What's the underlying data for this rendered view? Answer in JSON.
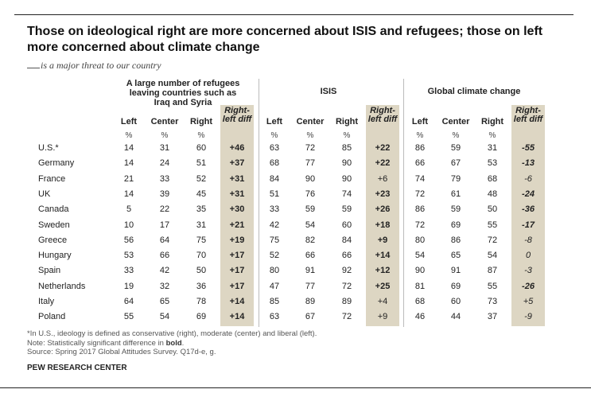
{
  "title": "Those on ideological right are more concerned about ISIS and refugees; those on left more concerned about climate change",
  "subtitle": "is a major threat to our country",
  "chart_data": {
    "type": "table",
    "groups": [
      {
        "name": "A large number of refugees leaving countries such as Iraq and Syria"
      },
      {
        "name": "ISIS"
      },
      {
        "name": "Global climate change"
      }
    ],
    "columns": [
      "Left",
      "Center",
      "Right",
      "Right-left diff"
    ],
    "units": [
      "%",
      "%",
      "%"
    ],
    "rows": [
      {
        "country": "U.S.*",
        "refugees": [
          14,
          31,
          60,
          "+46"
        ],
        "isis": [
          63,
          72,
          85,
          "+22"
        ],
        "climate": [
          86,
          59,
          31,
          "-55"
        ]
      },
      {
        "country": "Germany",
        "refugees": [
          14,
          24,
          51,
          "+37"
        ],
        "isis": [
          68,
          77,
          90,
          "+22"
        ],
        "climate": [
          66,
          67,
          53,
          "-13"
        ]
      },
      {
        "country": "France",
        "refugees": [
          21,
          33,
          52,
          "+31"
        ],
        "isis": [
          84,
          90,
          90,
          "+6"
        ],
        "climate": [
          74,
          79,
          68,
          "-6"
        ]
      },
      {
        "country": "UK",
        "refugees": [
          14,
          39,
          45,
          "+31"
        ],
        "isis": [
          51,
          76,
          74,
          "+23"
        ],
        "climate": [
          72,
          61,
          48,
          "-24"
        ]
      },
      {
        "country": "Canada",
        "refugees": [
          5,
          22,
          35,
          "+30"
        ],
        "isis": [
          33,
          59,
          59,
          "+26"
        ],
        "climate": [
          86,
          59,
          50,
          "-36"
        ]
      },
      {
        "country": "Sweden",
        "refugees": [
          10,
          17,
          31,
          "+21"
        ],
        "isis": [
          42,
          54,
          60,
          "+18"
        ],
        "climate": [
          72,
          69,
          55,
          "-17"
        ]
      },
      {
        "country": "Greece",
        "refugees": [
          56,
          64,
          75,
          "+19"
        ],
        "isis": [
          75,
          82,
          84,
          "+9"
        ],
        "climate": [
          80,
          86,
          72,
          "-8"
        ]
      },
      {
        "country": "Hungary",
        "refugees": [
          53,
          66,
          70,
          "+17"
        ],
        "isis": [
          52,
          66,
          66,
          "+14"
        ],
        "climate": [
          54,
          65,
          54,
          "0"
        ]
      },
      {
        "country": "Spain",
        "refugees": [
          33,
          42,
          50,
          "+17"
        ],
        "isis": [
          80,
          91,
          92,
          "+12"
        ],
        "climate": [
          90,
          91,
          87,
          "-3"
        ]
      },
      {
        "country": "Netherlands",
        "refugees": [
          19,
          32,
          36,
          "+17"
        ],
        "isis": [
          47,
          77,
          72,
          "+25"
        ],
        "climate": [
          81,
          69,
          55,
          "-26"
        ]
      },
      {
        "country": "Italy",
        "refugees": [
          64,
          65,
          78,
          "+14"
        ],
        "isis": [
          85,
          89,
          89,
          "+4"
        ],
        "climate": [
          68,
          60,
          73,
          "+5"
        ]
      },
      {
        "country": "Poland",
        "refugees": [
          55,
          54,
          69,
          "+14"
        ],
        "isis": [
          63,
          67,
          72,
          "+9"
        ],
        "climate": [
          46,
          44,
          37,
          "-9"
        ]
      }
    ],
    "significant": {
      "refugees": [
        true,
        true,
        true,
        true,
        true,
        true,
        true,
        true,
        true,
        true,
        true,
        true
      ],
      "isis": [
        true,
        true,
        false,
        true,
        true,
        true,
        true,
        true,
        true,
        true,
        false,
        false
      ],
      "climate": [
        true,
        true,
        false,
        true,
        true,
        true,
        false,
        false,
        false,
        true,
        false,
        false
      ]
    }
  },
  "notes": {
    "line1": "*In U.S., ideology is defined as conservative (right), moderate (center) and liberal (left).",
    "line2_pre": "Note: Statistically significant difference in ",
    "line2_bold": "bold",
    "line2_post": ".",
    "source": "Source: Spring 2017 Global Attitudes Survey. Q17d-e, g."
  },
  "org": "PEW RESEARCH CENTER"
}
